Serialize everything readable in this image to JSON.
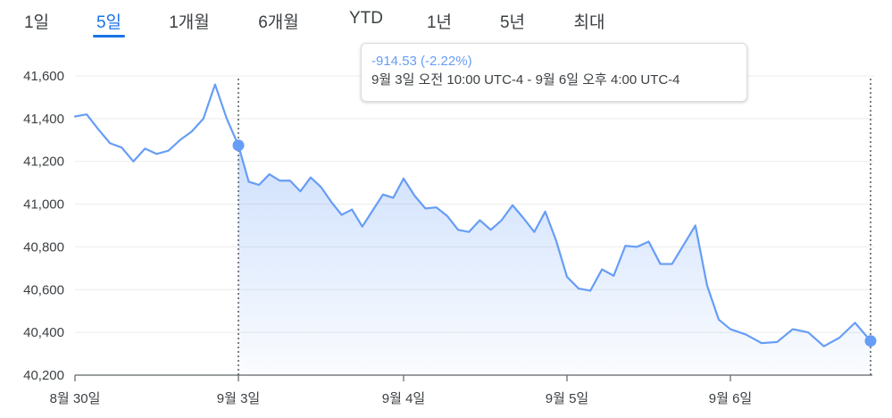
{
  "tabs": [
    {
      "label": "1일",
      "active": false
    },
    {
      "label": "5일",
      "active": true
    },
    {
      "label": "1개월",
      "active": false
    },
    {
      "label": "6개월",
      "active": false
    },
    {
      "label": "YTD",
      "active": false
    },
    {
      "label": "1년",
      "active": false
    },
    {
      "label": "5년",
      "active": false
    },
    {
      "label": "최대",
      "active": false
    }
  ],
  "tooltip": {
    "change": "-914.53 (-2.22%)",
    "range": "9월 3일 오전 10:00 UTC-4 - 9월 6일 오후 4:00 UTC-4"
  },
  "colors": {
    "line": "#669df6",
    "accent": "#1a73e8",
    "grid": "#ebebeb"
  },
  "chart_data": {
    "type": "area",
    "title": "",
    "xlabel": "",
    "ylabel": "",
    "ylim": [
      40200,
      41600
    ],
    "y_ticks": [
      "41,600",
      "41,400",
      "41,200",
      "41,000",
      "40,800",
      "40,600",
      "40,400",
      "40,200"
    ],
    "y_tick_values": [
      41600,
      41400,
      41200,
      41000,
      40800,
      40600,
      40400,
      40200
    ],
    "x_ticks": [
      "8월 30일",
      "9월 3일",
      "9월 4일",
      "9월 5일",
      "9월 6일"
    ],
    "grid": "horizontal",
    "selection": {
      "start": "9월 3일 오전 10:00",
      "end": "9월 6일 오후 4:00"
    },
    "series": [
      {
        "values": [
          41410,
          41420,
          41350,
          41285,
          41265,
          41200,
          41260,
          41235,
          41250,
          41300,
          41340,
          41400,
          41560,
          41400,
          41275,
          41105,
          41090,
          41140,
          41110,
          41110,
          41060,
          41125,
          41080,
          41010,
          40950,
          40975,
          40895,
          40970,
          41045,
          41030,
          41120,
          41040,
          40980,
          40985,
          40945,
          40880,
          40870,
          40925,
          40880,
          40925,
          40995,
          40935,
          40870,
          40965,
          40830,
          40660,
          40605,
          40595,
          40695,
          40665,
          40805,
          40800,
          40825,
          40720,
          40720,
          40810,
          40900,
          40620,
          40460,
          40415,
          40390,
          40350,
          40355,
          40415,
          40400,
          40335,
          40375,
          40445,
          40360
        ]
      }
    ]
  }
}
